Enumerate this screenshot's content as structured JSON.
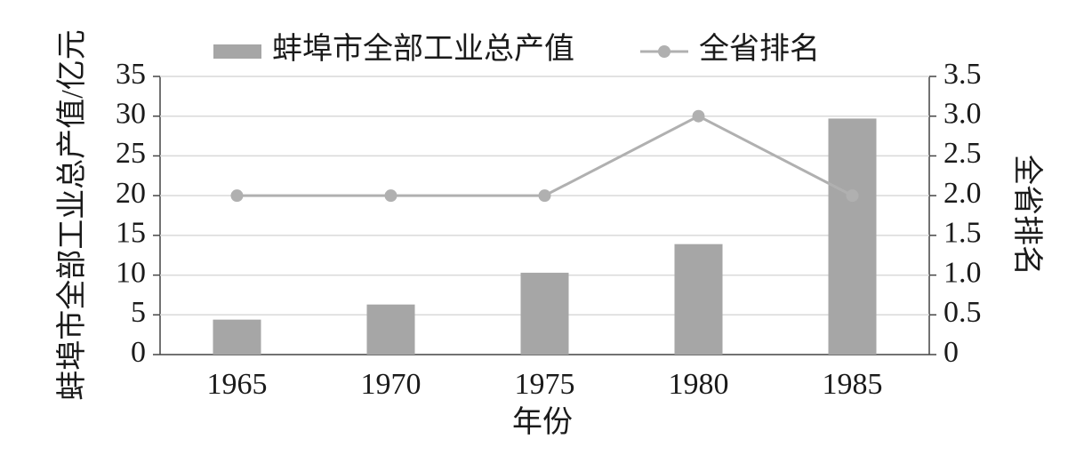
{
  "chart_data": {
    "type": "bar",
    "x_label": "年份",
    "y_label": "蚌埠市全部工业总产值/亿元",
    "y2_label": "全省排名",
    "categories": [
      "1965",
      "1970",
      "1975",
      "1980",
      "1985"
    ],
    "series": [
      {
        "name": "蚌埠市全部工业总产值",
        "type": "bar",
        "color": "#a6a6a6",
        "values": [
          4.4,
          6.3,
          10.3,
          13.9,
          29.7
        ]
      },
      {
        "name": "全省排名",
        "type": "line",
        "axis": "y2",
        "color": "#b0b0b0",
        "values": [
          2,
          2,
          2,
          3,
          2
        ]
      }
    ],
    "ylim": [
      0,
      35
    ],
    "yticks": [
      0,
      5,
      10,
      15,
      20,
      25,
      30,
      35
    ],
    "y2lim": [
      0,
      3.5
    ],
    "y2ticks": [
      0,
      0.5,
      {
        "value": 1,
        "label": "1.0"
      },
      1.5,
      {
        "value": 2,
        "label": "2.0"
      },
      2.5,
      {
        "value": 3,
        "label": "3.0"
      },
      3.5
    ],
    "grid": true,
    "legend": "top"
  }
}
